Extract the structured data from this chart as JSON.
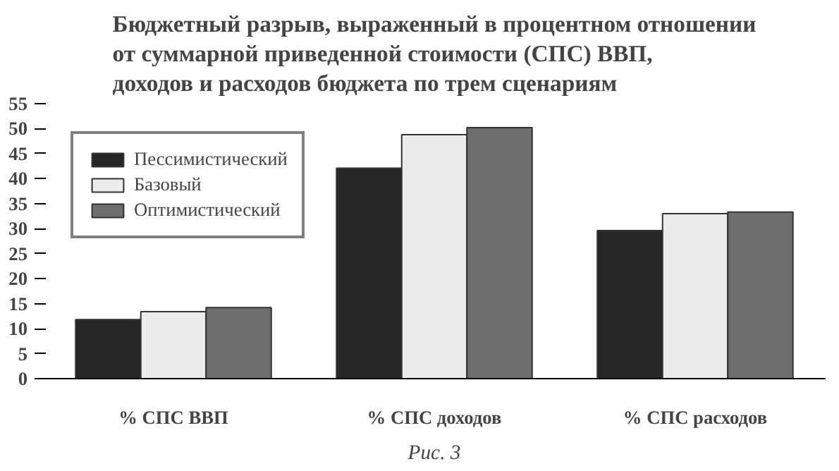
{
  "chart_data": {
    "type": "bar",
    "title": "Бюджетный разрыв, выраженный в процентном отношении\nот суммарной приведенной стоимости (СПС) ВВП,\nдоходов и расходов бюджета по трем сценариям",
    "categories": [
      "% СПС ВВП",
      "% СПС доходов",
      "% СПС расходов"
    ],
    "series": [
      {
        "name": "Пессимистический",
        "color": "#262626",
        "values": [
          11.8,
          42.1,
          29.6
        ]
      },
      {
        "name": "Базовый",
        "color": "#ececec",
        "values": [
          13.4,
          48.8,
          33.0
        ]
      },
      {
        "name": "Оптимистический",
        "color": "#6e6e6e",
        "values": [
          14.2,
          50.2,
          33.3
        ]
      }
    ],
    "ylim": [
      0,
      55
    ],
    "yticks": [
      0,
      5,
      10,
      15,
      20,
      25,
      30,
      35,
      40,
      45,
      50,
      55
    ],
    "grid": false,
    "legend": "top left",
    "annotations": [
      "Рис. 3"
    ]
  }
}
